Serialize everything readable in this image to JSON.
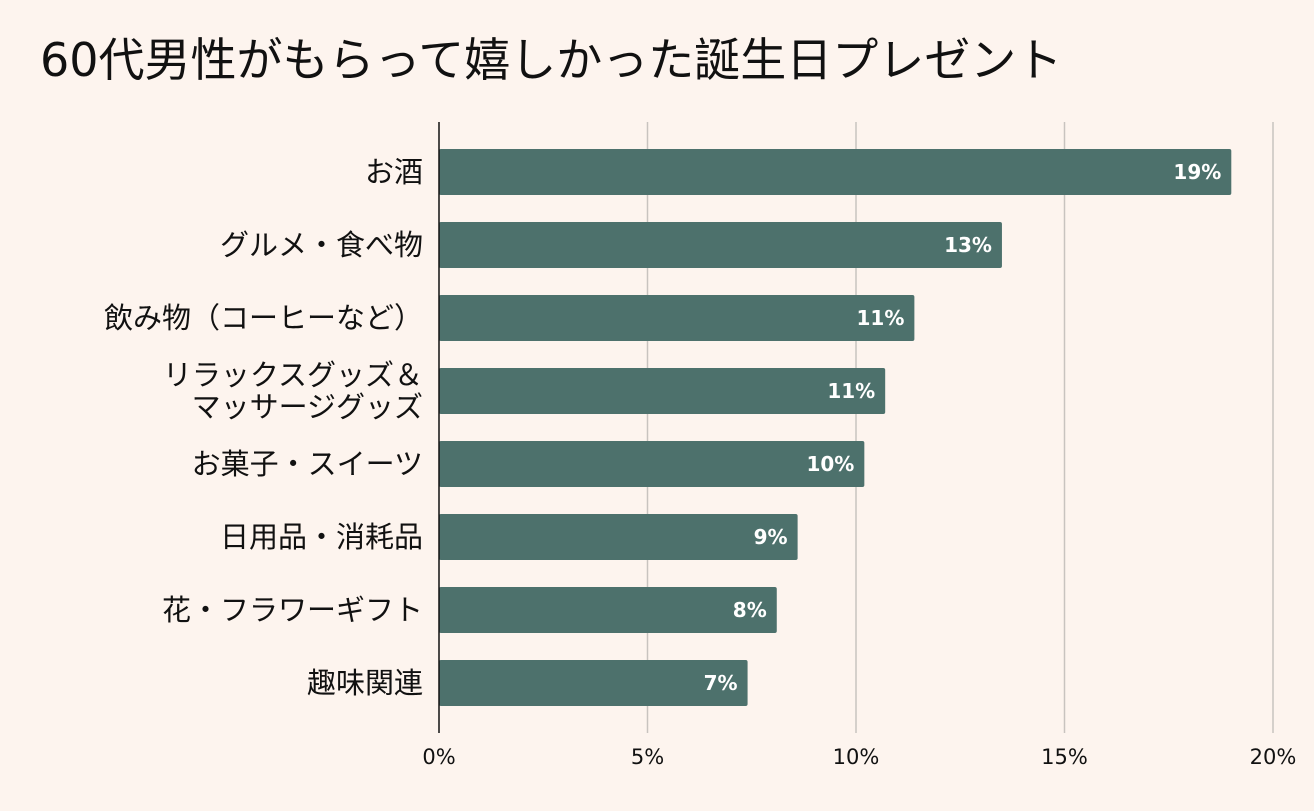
{
  "chart_data": {
    "type": "bar",
    "orientation": "horizontal",
    "title": "60代男性がもらって嬉しかった誕生日プレゼント",
    "categories": [
      "お酒",
      "グルメ・食べ物",
      "飲み物（コーヒーなど）",
      "リラックスグッズ＆\nマッサージグッズ",
      "お菓子・スイーツ",
      "日用品・消耗品",
      "花・フラワーギフト",
      "趣味関連"
    ],
    "values": [
      19,
      13.5,
      11.4,
      10.7,
      10.2,
      8.6,
      8.1,
      7.4
    ],
    "data_labels": [
      "19%",
      "13%",
      "11%",
      "11%",
      "10%",
      "9%",
      "8%",
      "7%"
    ],
    "x_ticks": [
      0,
      5,
      10,
      15,
      20
    ],
    "x_tick_labels": [
      "0%",
      "5%",
      "10%",
      "15%",
      "20%"
    ],
    "xlim": [
      0,
      20
    ],
    "xlabel": "",
    "ylabel": "",
    "grid": "vertical",
    "legend": "none",
    "colors": {
      "bar": "#4d716c",
      "background": "#fdf4ee",
      "grid": "#c8c3bf",
      "axis": "#111111",
      "bar_label": "#ffffff"
    }
  }
}
